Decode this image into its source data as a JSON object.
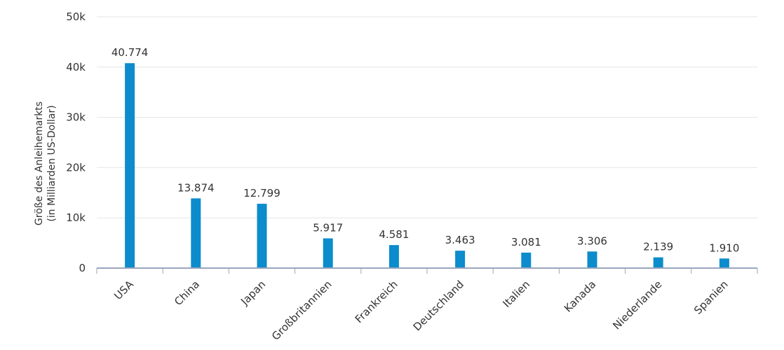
{
  "chart_data": {
    "type": "bar",
    "title": "",
    "xlabel": "",
    "ylabel_lines": [
      "Größe des Anleihemarkts",
      "(in Milliarden US-Dollar)"
    ],
    "categories": [
      "USA",
      "China",
      "Japan",
      "Großbritannien",
      "Frankreich",
      "Deutschland",
      "Italien",
      "Kanada",
      "Niederlande",
      "Spanien"
    ],
    "values": [
      40774,
      13874,
      12799,
      5917,
      4581,
      3463,
      3081,
      3306,
      2139,
      1910
    ],
    "value_labels": [
      "40.774",
      "13.874",
      "12.799",
      "5.917",
      "4.581",
      "3.463",
      "3.081",
      "3.306",
      "2.139",
      "1.910"
    ],
    "ylim": [
      0,
      50000
    ],
    "yticks": [
      0,
      10000,
      20000,
      30000,
      40000,
      50000
    ],
    "ytick_labels": [
      "0",
      "10k",
      "20k",
      "30k",
      "40k",
      "50k"
    ],
    "grid": true,
    "legend": "none",
    "colors": {
      "bar": "#0c8ccc",
      "grid": "#e6e6e6",
      "axis": "#9aa5bd"
    }
  }
}
